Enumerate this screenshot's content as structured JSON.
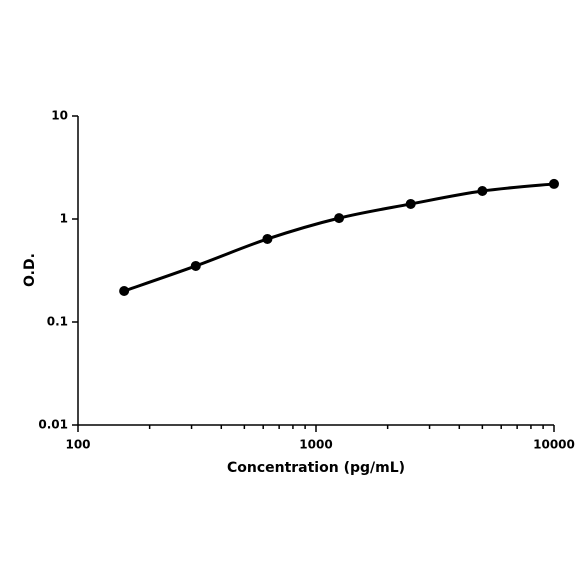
{
  "chart_data": {
    "type": "line",
    "x_label": "Concentration (pg/mL)",
    "y_label": "O.D.",
    "x": [
      156.25,
      312.5,
      625,
      1250,
      2500,
      5000,
      10000
    ],
    "values": [
      0.2,
      0.35,
      0.64,
      1.02,
      1.4,
      1.87,
      2.19
    ],
    "color": "#000000",
    "x_scale": "log",
    "y_scale": "log",
    "xlim": [
      100,
      10000
    ],
    "xticks": [
      100,
      1000,
      10000
    ],
    "ylim": [
      0.01,
      10
    ],
    "yticks": [
      0.01,
      0.1,
      1,
      10
    ]
  }
}
